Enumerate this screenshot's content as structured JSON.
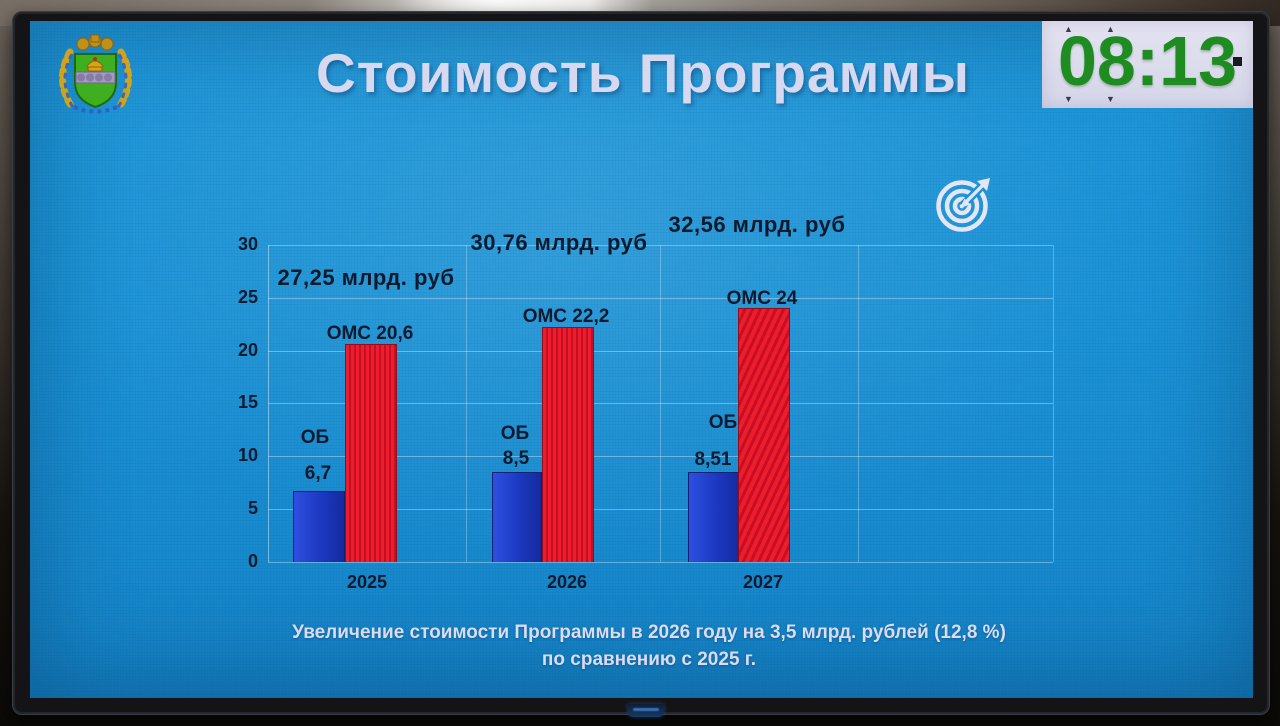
{
  "slide": {
    "title": "Стоимость Программы"
  },
  "clock": {
    "time": "08:13",
    "up_arrow": "▲",
    "down_arrow": "▼"
  },
  "chart_data": {
    "type": "bar",
    "title": "Стоимость Программы",
    "categories": [
      "2025",
      "2026",
      "2027"
    ],
    "series": [
      {
        "name": "ОБ",
        "color": "#1e3ac4",
        "values": [
          6.7,
          8.5,
          8.51
        ]
      },
      {
        "name": "ОМС",
        "color": "#e6192b",
        "values": [
          20.6,
          22.2,
          24
        ]
      }
    ],
    "group_totals": [
      {
        "label": "27,25 млрд. руб"
      },
      {
        "label": "30,76 млрд. руб"
      },
      {
        "label": "32,56 млрд. руб"
      }
    ],
    "bar_labels": {
      "oms": [
        "ОМС 20,6",
        "ОМС 22,2",
        "ОМС 24"
      ],
      "ob_name": "ОБ",
      "ob_values": [
        "6,7",
        "8,5",
        "8,51"
      ]
    },
    "xlabel": "",
    "ylabel": "",
    "ylim": [
      0,
      30
    ],
    "yticks": [
      0,
      5,
      10,
      15,
      20,
      25,
      30
    ],
    "grid": true,
    "legend_position": "none"
  },
  "caption": {
    "line1": "Увеличение стоимости Программы в 2026 году на 3,5 млрд. рублей (12,8 %)",
    "line2": "по сравнению с 2025 г."
  },
  "colors": {
    "screen_blue": "#1b92d6",
    "bar_blue": "#1e3ac4",
    "bar_red": "#e6192b",
    "clock_green": "#1f8c22",
    "light_text": "#d9dbf0",
    "dark_text": "#0c1a2e"
  }
}
